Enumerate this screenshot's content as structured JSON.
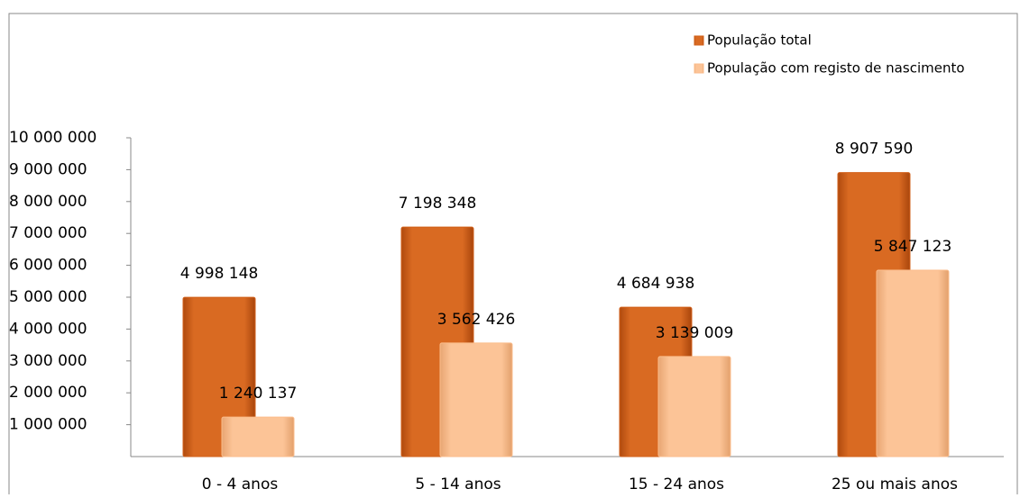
{
  "chart_data": {
    "type": "bar",
    "categories": [
      "0 - 4 anos",
      "5 - 14 anos",
      "15 - 24 anos",
      "25 ou  mais anos"
    ],
    "series": [
      {
        "name": "População total",
        "color": "#d2611b",
        "values": [
          4998148,
          7198348,
          4684938,
          8907590
        ],
        "value_labels": [
          "4 998 148",
          "7 198 348",
          "4 684 938",
          "8 907 590"
        ]
      },
      {
        "name": "População com registo de nascimento",
        "color": "#fbbd8c",
        "values": [
          1240137,
          3562426,
          3139009,
          5847123
        ],
        "value_labels": [
          "1 240 137",
          "3 562 426",
          "3 139 009",
          "5 847 123"
        ]
      }
    ],
    "ylim": [
      0,
      10000000
    ],
    "yticks": [
      {
        "value": 1000000,
        "label": "1 000 000"
      },
      {
        "value": 2000000,
        "label": "2 000 000"
      },
      {
        "value": 3000000,
        "label": "3 000 000"
      },
      {
        "value": 4000000,
        "label": "4 000 000"
      },
      {
        "value": 5000000,
        "label": "5 000 000"
      },
      {
        "value": 6000000,
        "label": "6 000 000"
      },
      {
        "value": 7000000,
        "label": "7 000 000"
      },
      {
        "value": 8000000,
        "label": "8 000 000"
      },
      {
        "value": 9000000,
        "label": "9 000 000"
      },
      {
        "value": 10000000,
        "label": "10 000 000"
      }
    ],
    "legend": "top-right"
  }
}
